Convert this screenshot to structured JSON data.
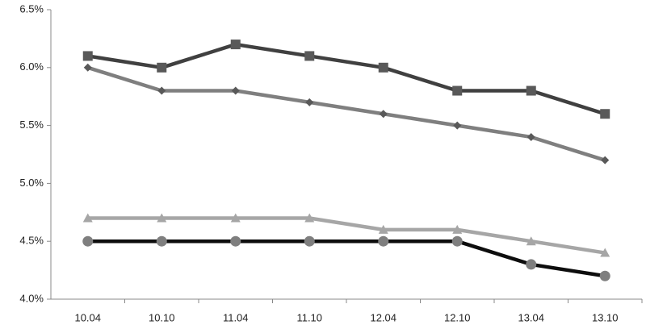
{
  "chart_data": {
    "type": "line",
    "categories": [
      "10.04",
      "10.10",
      "11.04",
      "11.10",
      "12.04",
      "12.10",
      "13.04",
      "13.10"
    ],
    "series": [
      {
        "color": "#404040",
        "marker": "square",
        "marker_color": "#595959",
        "values": [
          6.1,
          6.0,
          6.2,
          6.1,
          6.0,
          5.8,
          5.8,
          5.6
        ]
      },
      {
        "color": "#7f7f7f",
        "marker": "diamond",
        "marker_color": "#595959",
        "values": [
          6.0,
          5.8,
          5.8,
          5.7,
          5.6,
          5.5,
          5.4,
          5.2
        ]
      },
      {
        "color": "#a6a6a6",
        "marker": "triangle",
        "marker_color": "#a6a6a6",
        "values": [
          4.7,
          4.7,
          4.7,
          4.7,
          4.6,
          4.6,
          4.5,
          4.4
        ]
      },
      {
        "color": "#0d0d0d",
        "marker": "circle",
        "marker_color": "#7f7f7f",
        "values": [
          4.5,
          4.5,
          4.5,
          4.5,
          4.5,
          4.5,
          4.3,
          4.2
        ]
      }
    ],
    "ylim": [
      4.0,
      6.5
    ],
    "yticks": [
      {
        "value": 4.0,
        "label": "4.0%"
      },
      {
        "value": 4.5,
        "label": "4.5%"
      },
      {
        "value": 5.0,
        "label": "5.0%"
      },
      {
        "value": 5.5,
        "label": "5.5%"
      },
      {
        "value": 6.0,
        "label": "6.0%"
      },
      {
        "value": 6.5,
        "label": "6.5%"
      }
    ],
    "grid": false
  }
}
